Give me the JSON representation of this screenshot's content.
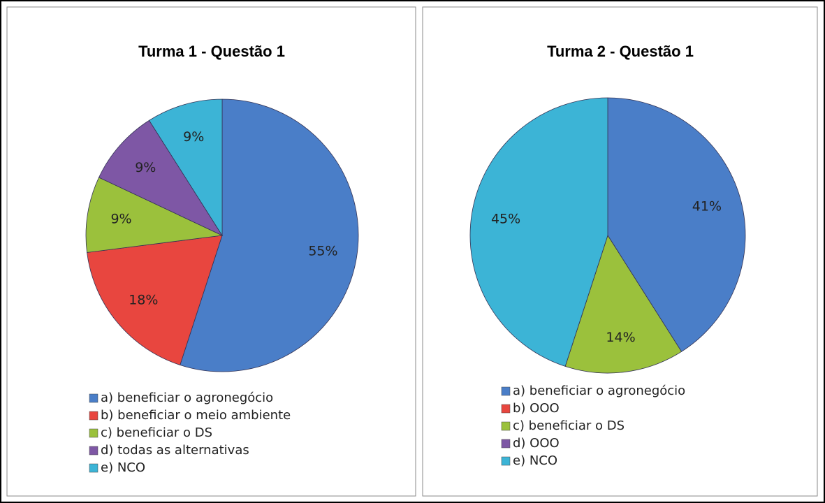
{
  "chart_data": [
    {
      "type": "pie",
      "title": "Turma 1 - Questão 1",
      "categories": [
        "a) beneficiar o agronegócio",
        "b) beneficiar o meio ambiente",
        "c) beneficiar o DS",
        "d) todas as alternativas",
        "e) NCO"
      ],
      "values": [
        55,
        18,
        9,
        9,
        9
      ],
      "value_labels": [
        "55%",
        "18%",
        "9%",
        "9%",
        "9%"
      ],
      "colors": [
        "#4a7ec8",
        "#e8463f",
        "#9bc13c",
        "#7e57a5",
        "#3cb4d6"
      ]
    },
    {
      "type": "pie",
      "title": "Turma 2 - Questão 1",
      "categories": [
        "a) beneficiar o agronegócio",
        "b) OOO",
        "c) beneficiar o DS",
        "d) OOO",
        "e) NCO"
      ],
      "values": [
        41,
        0,
        14,
        0,
        45
      ],
      "value_labels": [
        "41%",
        null,
        "14%",
        null,
        "45%"
      ],
      "colors": [
        "#4a7ec8",
        "#e8463f",
        "#9bc13c",
        "#7e57a5",
        "#3cb4d6"
      ]
    }
  ]
}
